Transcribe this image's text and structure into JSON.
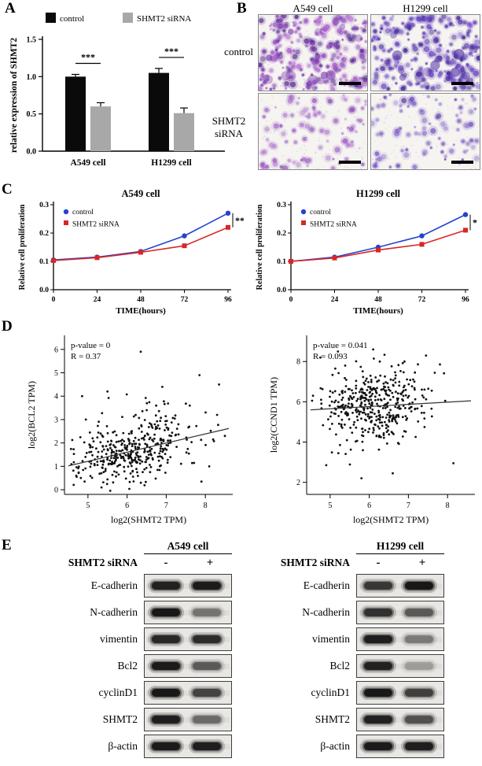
{
  "panel_letters": {
    "a": "A",
    "b": "B",
    "c": "C",
    "d": "D",
    "e": "E"
  },
  "chart_data": [
    {
      "id": "shmt2-expression",
      "type": "bar",
      "title": "",
      "xlabel": "",
      "ylabel": "relative expression of SHMT2",
      "ylim": [
        0,
        1.5
      ],
      "yticks": [
        0,
        0.5,
        1,
        1.5
      ],
      "categories": [
        "A549 cell",
        "H1299 cell"
      ],
      "series": [
        {
          "name": "control",
          "color": "#0a0a0a",
          "values": [
            1.0,
            1.05
          ],
          "errors": [
            0.03,
            0.06
          ]
        },
        {
          "name": "SHMT2 siRNA",
          "color": "#a8a8a8",
          "values": [
            0.6,
            0.51
          ],
          "errors": [
            0.05,
            0.07
          ]
        }
      ],
      "significance": [
        "***",
        "***"
      ],
      "legend_position": "top"
    },
    {
      "id": "proliferation-a549",
      "type": "line",
      "title": "A549 cell",
      "xlabel": "TIME(hours)",
      "ylabel": "Relative cell proliferation",
      "x": [
        0,
        24,
        48,
        72,
        96
      ],
      "xticks": [
        0,
        24,
        48,
        72,
        96
      ],
      "ylim": [
        0,
        0.3
      ],
      "yticks": [
        0,
        0.1,
        0.2,
        0.3
      ],
      "series": [
        {
          "name": "control",
          "color": "#2244cc",
          "marker": "circle",
          "values": [
            0.105,
            0.115,
            0.135,
            0.19,
            0.27
          ]
        },
        {
          "name": "SHMT2 siRNA",
          "color": "#d92626",
          "marker": "square",
          "values": [
            0.103,
            0.113,
            0.132,
            0.155,
            0.22
          ]
        }
      ],
      "significance": "**",
      "legend_position": "inside-top-left"
    },
    {
      "id": "proliferation-h1299",
      "type": "line",
      "title": "H1299 cell",
      "xlabel": "TIME(hours)",
      "ylabel": "Relative cell proliferation",
      "x": [
        0,
        24,
        48,
        72,
        96
      ],
      "xticks": [
        0,
        24,
        48,
        72,
        96
      ],
      "ylim": [
        0,
        0.3
      ],
      "yticks": [
        0,
        0.1,
        0.2,
        0.3
      ],
      "series": [
        {
          "name": "control",
          "color": "#2244cc",
          "marker": "circle",
          "values": [
            0.1,
            0.115,
            0.15,
            0.19,
            0.265
          ]
        },
        {
          "name": "SHMT2 siRNA",
          "color": "#d92626",
          "marker": "square",
          "values": [
            0.1,
            0.112,
            0.14,
            0.16,
            0.21
          ]
        }
      ],
      "significance": "*",
      "legend_position": "inside-top-left"
    },
    {
      "id": "correlation-shmt2-bcl2",
      "type": "scatter",
      "annotation": [
        "p-value = 0",
        "R = 0.37"
      ],
      "xlabel": "log2(SHMT2 TPM)",
      "ylabel": "log2(BCL2 TPM)",
      "xlim": [
        4.4,
        8.7
      ],
      "xticks": [
        5,
        6,
        7,
        8
      ],
      "ylim": [
        -0.2,
        6.6
      ],
      "yticks": [
        0,
        1,
        2,
        3,
        4,
        5,
        6
      ],
      "n_points": 400,
      "x_mean": 6.15,
      "x_sd": 0.72,
      "y_mean": 1.75,
      "y_sd": 0.8,
      "r": 0.37,
      "seed": 7,
      "outliers": [
        [
          7.85,
          4.9
        ],
        [
          8.2,
          2.15
        ],
        [
          4.85,
          4.0
        ],
        [
          6.35,
          5.9
        ],
        [
          7.9,
          0.35
        ],
        [
          8.35,
          4.5
        ],
        [
          5.5,
          4.2
        ],
        [
          8.5,
          2.3
        ],
        [
          7.6,
          3.6
        ],
        [
          6.9,
          4.4
        ],
        [
          8.1,
          1.0
        ],
        [
          8.3,
          3.2
        ]
      ],
      "trend": {
        "x1": 4.5,
        "y1": 1.02,
        "x2": 8.6,
        "y2": 2.62
      }
    },
    {
      "id": "correlation-shmt2-ccnd1",
      "type": "scatter",
      "annotation": [
        "p-value = 0.041",
        "R = 0.093"
      ],
      "xlabel": "log2(SHMT2 TPM)",
      "ylabel": "log2(CCND1 TPM)",
      "xlim": [
        4.4,
        8.7
      ],
      "xticks": [
        5,
        6,
        7,
        8
      ],
      "ylim": [
        1.4,
        9.3
      ],
      "yticks": [
        2,
        4,
        6,
        8
      ],
      "n_points": 420,
      "x_mean": 6.1,
      "x_sd": 0.72,
      "y_mean": 5.85,
      "y_sd": 0.95,
      "r": 0.093,
      "seed": 19,
      "outliers": [
        [
          5.8,
          2.2
        ],
        [
          6.6,
          2.45
        ],
        [
          4.9,
          2.85
        ],
        [
          8.15,
          2.95
        ],
        [
          5.2,
          8.5
        ],
        [
          7.45,
          8.3
        ],
        [
          6.1,
          8.6
        ],
        [
          4.75,
          8.2
        ]
      ],
      "trend": {
        "x1": 4.5,
        "y1": 5.6,
        "x2": 8.6,
        "y2": 6.05
      }
    }
  ],
  "panelB": {
    "column_titles": [
      "A549 cell",
      "H1299 cell"
    ],
    "row_labels": [
      "control",
      "SHMT2 siRNA"
    ],
    "stain_color": "#7c3fae",
    "images": [
      {
        "name": "a549-control",
        "density": 1.0,
        "seed": 11,
        "palette": [
          "#7c3fae",
          "#9a55c4",
          "#5c2f94",
          "#b06ad0"
        ]
      },
      {
        "name": "h1299-control",
        "density": 0.95,
        "seed": 22,
        "palette": [
          "#5636a8",
          "#4a2c9c",
          "#6d4cc0",
          "#7e5cd0"
        ]
      },
      {
        "name": "a549-sirna",
        "density": 0.4,
        "seed": 33,
        "palette": [
          "#9a55c4",
          "#b07ad0",
          "#8a4fb8"
        ]
      },
      {
        "name": "h1299-sirna",
        "density": 0.38,
        "seed": 44,
        "palette": [
          "#5636a8",
          "#6d4cc0",
          "#8668cc"
        ]
      }
    ]
  },
  "panelE": {
    "groups": [
      {
        "title": "A549 cell",
        "treatment_label": "SHMT2 siRNA",
        "lanes": [
          "-",
          "+"
        ],
        "blots": [
          {
            "protein": "E-cadherin",
            "bands": [
              0.88,
              0.92
            ]
          },
          {
            "protein": "N-cadherin",
            "bands": [
              0.95,
              0.38
            ]
          },
          {
            "protein": "vimentin",
            "bands": [
              0.82,
              0.78
            ]
          },
          {
            "protein": "Bcl2",
            "bands": [
              0.92,
              0.5
            ]
          },
          {
            "protein": "cyclinD1",
            "bands": [
              0.95,
              0.62
            ]
          },
          {
            "protein": "SHMT2",
            "bands": [
              0.9,
              0.42
            ]
          },
          {
            "protein": "β-actin",
            "bands": [
              0.92,
              0.9
            ]
          }
        ]
      },
      {
        "title": "H1299 cell",
        "treatment_label": "SHMT2 siRNA",
        "lanes": [
          "-",
          "+"
        ],
        "blots": [
          {
            "protein": "E-cadherin",
            "bands": [
              0.7,
              0.97
            ]
          },
          {
            "protein": "N-cadherin",
            "bands": [
              0.75,
              0.5
            ]
          },
          {
            "protein": "vimentin",
            "bands": [
              0.9,
              0.35
            ]
          },
          {
            "protein": "Bcl2",
            "bands": [
              0.88,
              0.22
            ]
          },
          {
            "protein": "cyclinD1",
            "bands": [
              0.95,
              0.65
            ]
          },
          {
            "protein": "SHMT2",
            "bands": [
              0.88,
              0.55
            ]
          },
          {
            "protein": "β-actin",
            "bands": [
              0.92,
              0.9
            ]
          }
        ]
      }
    ]
  }
}
